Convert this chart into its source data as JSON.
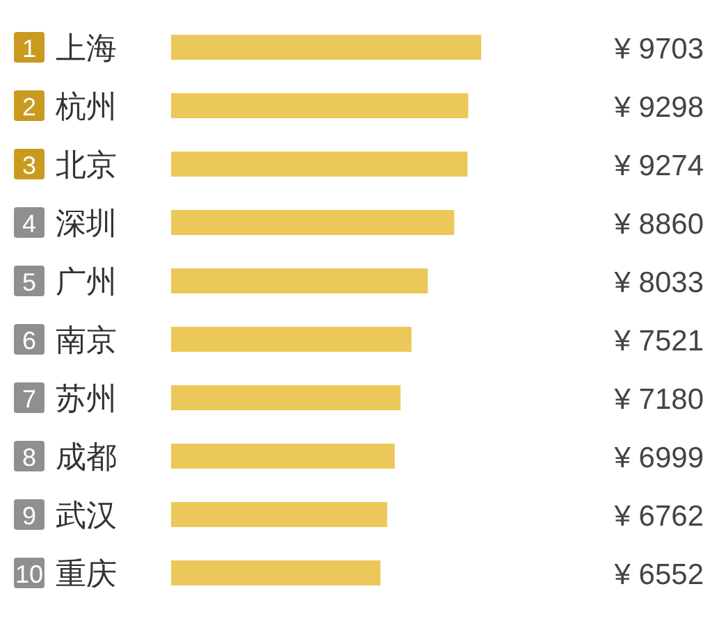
{
  "chart_data": {
    "type": "bar",
    "orientation": "horizontal",
    "categories": [
      "1 上海",
      "2 杭州",
      "3 北京",
      "4 深圳",
      "5 广州",
      "6 南京",
      "7 苏州",
      "8 成都",
      "9 武汉",
      "10 重庆"
    ],
    "values": [
      9703,
      9298,
      9274,
      8860,
      8033,
      7521,
      7180,
      6999,
      6762,
      6552
    ],
    "color": "#ecc85a",
    "value_labels": [
      "¥ 9703",
      "¥ 9298",
      "¥ 9274",
      "¥ 8860",
      "¥ 8033",
      "¥ 7521",
      "¥ 7180",
      "¥ 6999",
      "¥ 6762",
      "¥ 6552"
    ]
  }
}
